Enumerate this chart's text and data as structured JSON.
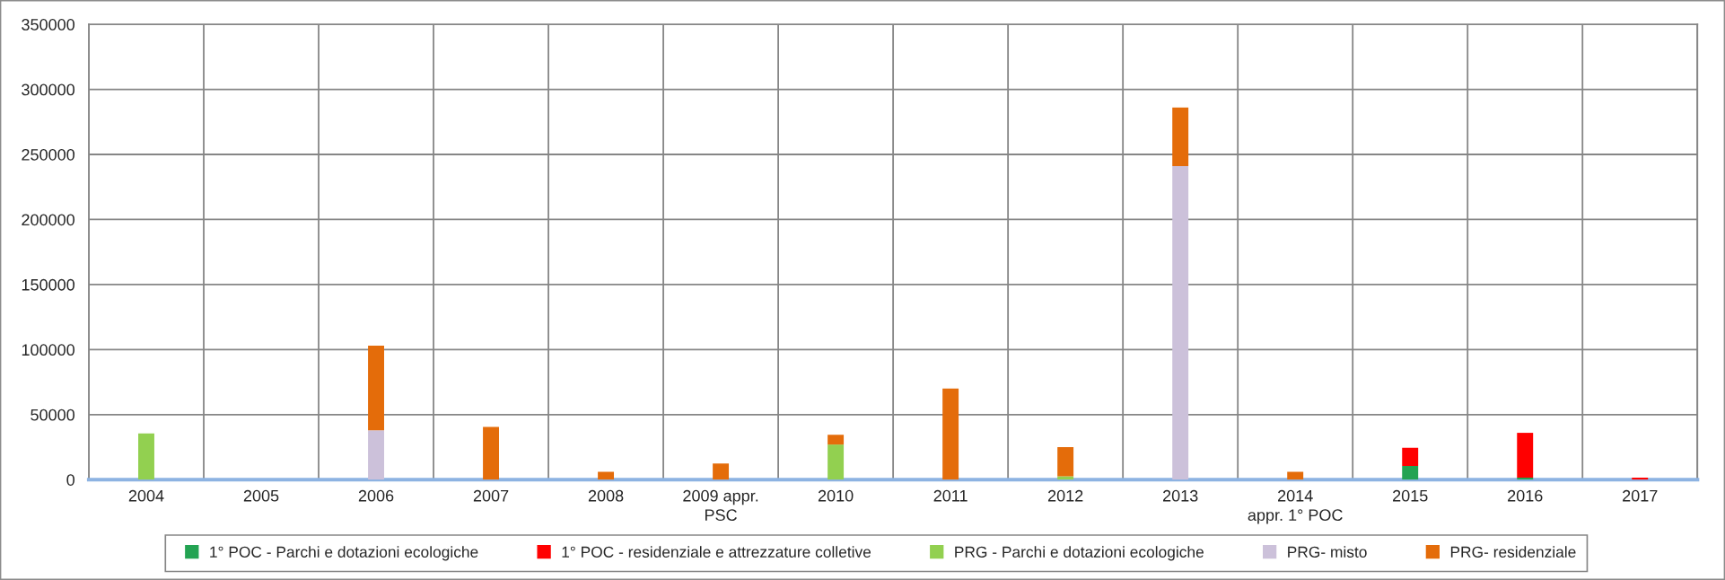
{
  "chart_data": {
    "type": "bar",
    "stacked": true,
    "categories": [
      "2004",
      "2005",
      "2006",
      "2007",
      "2008",
      "2009 appr.\nPSC",
      "2010",
      "2011",
      "2012",
      "2013",
      "2014\nappr. 1° POC",
      "2015",
      "2016",
      "2017"
    ],
    "series": [
      {
        "name": "1° POC - Parchi e dotazioni ecologiche",
        "color": "#23a352",
        "values": [
          null,
          null,
          null,
          null,
          null,
          null,
          null,
          null,
          null,
          null,
          null,
          10500,
          1500,
          null
        ]
      },
      {
        "name": "1° POC - residenziale e attrezzature colletive",
        "color": "#ff0000",
        "values": [
          null,
          null,
          null,
          null,
          null,
          null,
          null,
          null,
          null,
          null,
          null,
          14000,
          34500,
          1500
        ]
      },
      {
        "name": "PRG - Parchi e dotazioni ecologiche",
        "color": "#92d050",
        "values": [
          35500,
          null,
          null,
          null,
          null,
          null,
          27000,
          null,
          2500,
          null,
          null,
          null,
          null,
          null
        ]
      },
      {
        "name": "PRG- misto",
        "color": "#ccc1da",
        "values": [
          null,
          null,
          38000,
          null,
          null,
          null,
          null,
          null,
          null,
          241000,
          null,
          null,
          null,
          null
        ]
      },
      {
        "name": "PRG- residenziale",
        "color": "#e46c0a",
        "values": [
          null,
          null,
          65000,
          40500,
          6000,
          12500,
          7500,
          70000,
          22500,
          45000,
          6000,
          null,
          null,
          null
        ]
      }
    ],
    "ylim": [
      0,
      350000
    ],
    "yticks": [
      0,
      50000,
      100000,
      150000,
      200000,
      250000,
      300000,
      350000
    ],
    "grid": true,
    "legend": "bottom"
  }
}
